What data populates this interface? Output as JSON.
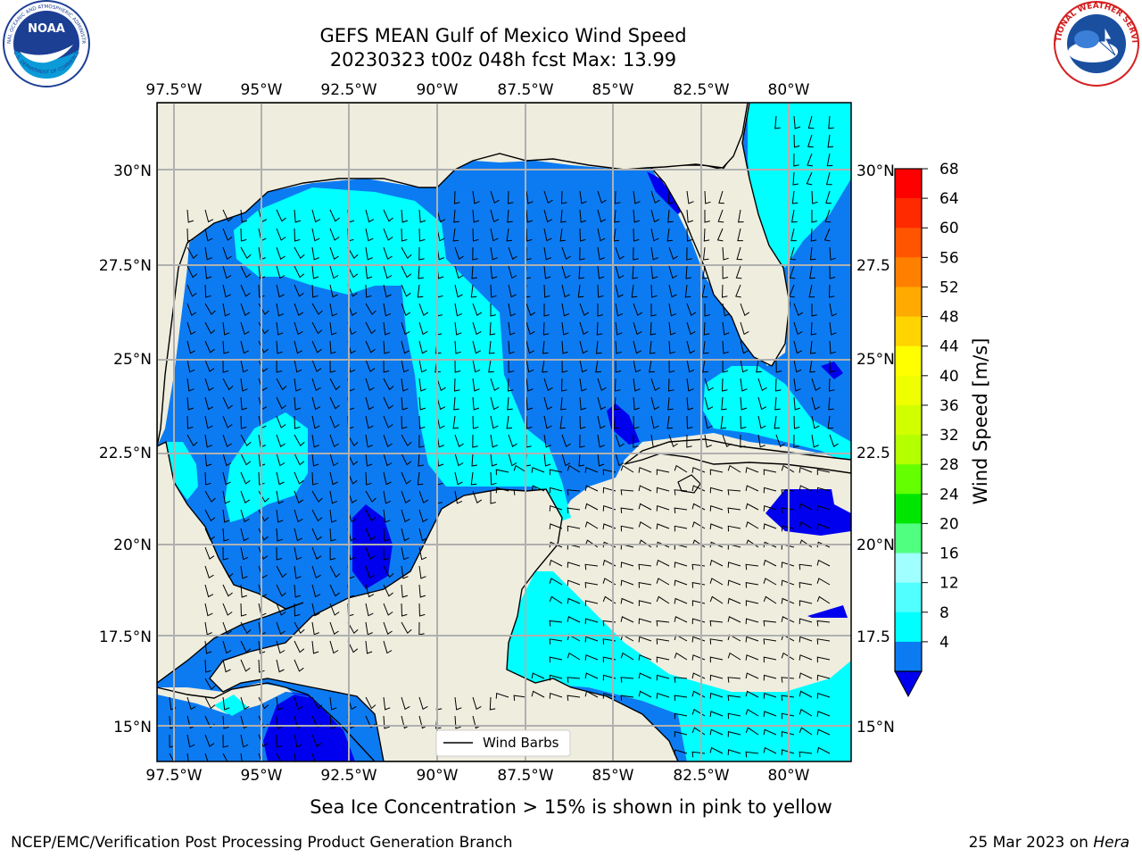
{
  "title": {
    "line1": "GEFS MEAN Gulf of Mexico Wind Speed",
    "line2": "20230323 t00z 048h fcst   Max: 13.99"
  },
  "logos": {
    "left": "noaa-logo",
    "right": "nws-logo",
    "left_ring_text": "NATIONAL OCEANIC AND ATMOSPHERIC ADMINISTRATION",
    "left_ring_text_bottom": "U.S. DEPARTMENT OF COMMERCE",
    "left_center_text": "NOAA",
    "right_ring_text": "NATIONAL WEATHER SERVICE"
  },
  "map": {
    "lon_labels": [
      "97.5°W",
      "95°W",
      "92.5°W",
      "90°W",
      "87.5°W",
      "85°W",
      "82.5°W",
      "80°W"
    ],
    "lat_labels_left": [
      "30°N",
      "27.5°N",
      "25°N",
      "22.5°N",
      "20°N",
      "17.5°N",
      "15°N"
    ],
    "lat_labels_right": [
      "30°N",
      "27.5",
      "25°N",
      "22.5",
      "20°N",
      "17.5",
      "15°N"
    ],
    "legend_label": "Wind Barbs",
    "colors": {
      "land": "#efedde",
      "wind_4_8": "#0c7bf2",
      "wind_8_12": "#00ffff",
      "wind_0_4": "#0000ee",
      "grid": "#b0b0b0"
    }
  },
  "colorbar": {
    "label": "Wind Speed [m/s]",
    "ticks": [
      "68",
      "64",
      "60",
      "56",
      "52",
      "48",
      "44",
      "40",
      "36",
      "32",
      "28",
      "24",
      "20",
      "16",
      "12",
      "8",
      "4"
    ],
    "colors": [
      "#ff0000",
      "#ff2a00",
      "#ff5500",
      "#ff8000",
      "#ffaa00",
      "#ffd400",
      "#ffff00",
      "#f0ff00",
      "#d2ff00",
      "#b4ff00",
      "#64ff00",
      "#00e600",
      "#50ff80",
      "#a0ffff",
      "#50ffff",
      "#00ffff",
      "#0c7bf2"
    ],
    "extend_color": "#0000ee"
  },
  "note": "Sea Ice Concentration > 15% is shown in pink to yellow",
  "footer": {
    "left": "NCEP/EMC/Verification Post Processing Product Generation Branch",
    "right_date": "25 Mar 2023 on ",
    "right_machine": "Hera"
  }
}
